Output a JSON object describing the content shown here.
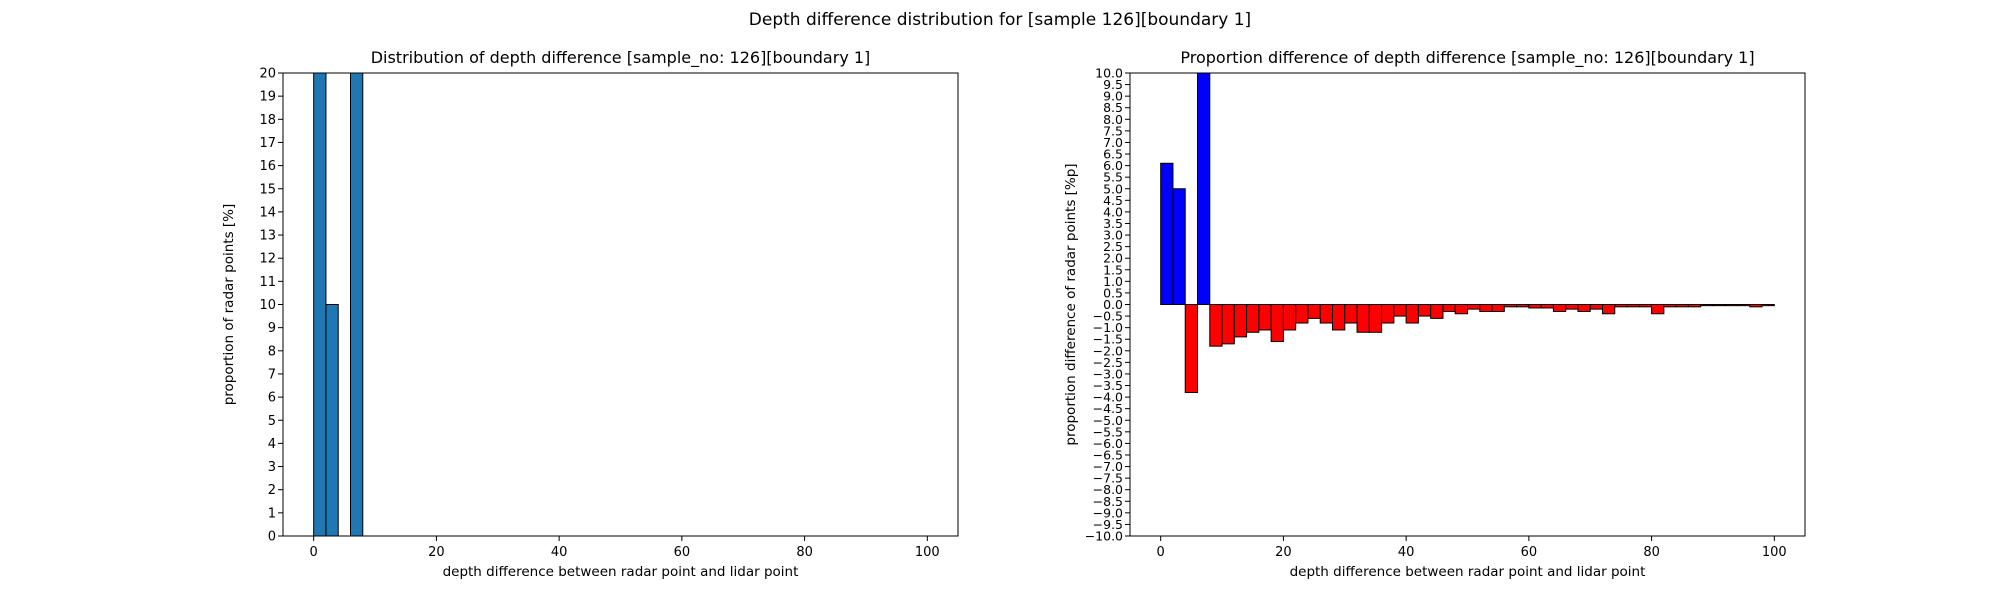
{
  "figure": {
    "suptitle": "Depth difference distribution for [sample 126][boundary 1]"
  },
  "chart_data": [
    {
      "type": "bar",
      "title": "Distribution of depth difference [sample_no: 126][boundary 1]",
      "xlabel": "depth difference between radar point and lidar point",
      "ylabel": "proportion of radar points [%]",
      "xlim": [
        -5,
        105
      ],
      "ylim": [
        0,
        20
      ],
      "x_ticks": [
        0,
        20,
        40,
        60,
        80,
        100
      ],
      "y_ticks": [
        0,
        1,
        2,
        3,
        4,
        5,
        6,
        7,
        8,
        9,
        10,
        11,
        12,
        13,
        14,
        15,
        16,
        17,
        18,
        19,
        20
      ],
      "bar_width": 2,
      "color": "#1f77b4",
      "x": [
        1,
        3,
        7
      ],
      "values": [
        20,
        10,
        20
      ],
      "grid": false
    },
    {
      "type": "bar",
      "title": "Proportion difference of depth difference [sample_no: 126][boundary 1]",
      "xlabel": "depth difference between radar point and lidar point",
      "ylabel": "proportion difference of radar points [%p]",
      "xlim": [
        -5,
        105
      ],
      "ylim": [
        -10,
        10
      ],
      "x_ticks": [
        0,
        20,
        40,
        60,
        80,
        100
      ],
      "y_ticks": [
        -10.0,
        -9.5,
        -9.0,
        -8.5,
        -8.0,
        -7.5,
        -7.0,
        -6.5,
        -6.0,
        -5.5,
        -5.0,
        -4.5,
        -4.0,
        -3.5,
        -3.0,
        -2.5,
        -2.0,
        -1.5,
        -1.0,
        -0.5,
        0.0,
        0.5,
        1.0,
        1.5,
        2.0,
        2.5,
        3.0,
        3.5,
        4.0,
        4.5,
        5.0,
        5.5,
        6.0,
        6.5,
        7.0,
        7.5,
        8.0,
        8.5,
        9.0,
        9.5,
        10.0
      ],
      "bar_width": 2,
      "positive_color": "#0000ff",
      "negative_color": "#ff0000",
      "x": [
        1,
        3,
        5,
        7,
        9,
        11,
        13,
        15,
        17,
        19,
        21,
        23,
        25,
        27,
        29,
        31,
        33,
        35,
        37,
        39,
        41,
        43,
        45,
        47,
        49,
        51,
        53,
        55,
        57,
        59,
        61,
        63,
        65,
        67,
        69,
        71,
        73,
        75,
        77,
        79,
        81,
        83,
        85,
        87,
        89,
        91,
        93,
        95,
        97,
        99
      ],
      "values": [
        6.1,
        5.0,
        -3.8,
        10.0,
        -1.8,
        -1.7,
        -1.4,
        -1.2,
        -1.1,
        -1.6,
        -1.1,
        -0.8,
        -0.6,
        -0.8,
        -1.1,
        -0.8,
        -1.2,
        -1.2,
        -0.8,
        -0.5,
        -0.8,
        -0.5,
        -0.6,
        -0.3,
        -0.4,
        -0.2,
        -0.3,
        -0.3,
        -0.1,
        -0.1,
        -0.15,
        -0.15,
        -0.3,
        -0.2,
        -0.3,
        -0.2,
        -0.4,
        -0.1,
        -0.1,
        -0.1,
        -0.4,
        -0.1,
        -0.1,
        -0.1,
        -0.05,
        -0.05,
        -0.05,
        -0.05,
        -0.1,
        -0.05
      ],
      "grid": false
    }
  ]
}
